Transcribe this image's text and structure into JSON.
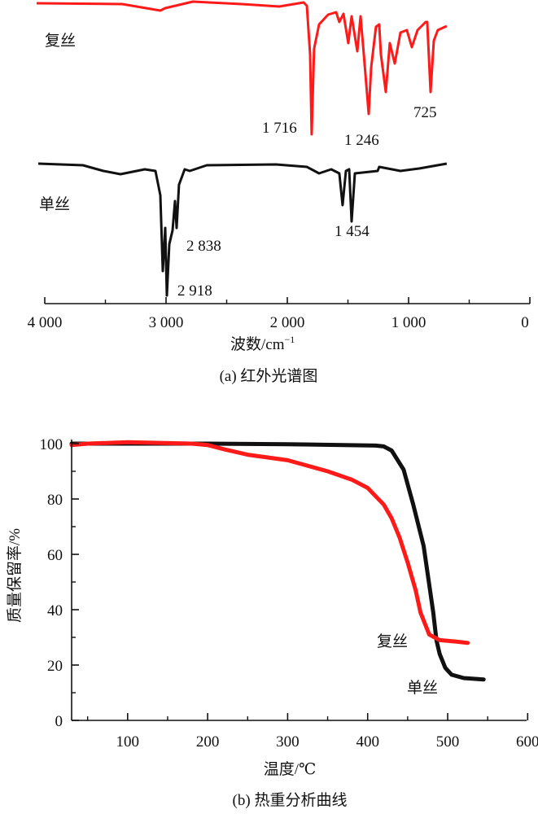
{
  "colors": {
    "composite": "#ff1a1a",
    "mono": "#111111",
    "axis": "#111111"
  },
  "chart_data": [
    {
      "type": "line",
      "title": "(a) 红外光谱图",
      "xlabel": "波数/cm",
      "xlabel_sup": "−1",
      "ylabel": "",
      "xlim": [
        4000,
        0
      ],
      "ylim": [
        -86,
        100
      ],
      "x_ticks": [
        4000,
        3000,
        2000,
        1000,
        0
      ],
      "x_tick_labels": [
        "4 000",
        "3 000",
        "2 000",
        "1 000",
        "0"
      ],
      "x_minor_ticks": [
        3500,
        2500,
        1500,
        500
      ],
      "grid": false,
      "series": [
        {
          "name": "复丝",
          "color": "#ff1a1a",
          "x": [
            4067,
            3362,
            3047,
            3007,
            2779,
            2376,
            2067,
            1866,
            1839,
            1812,
            1799,
            1779,
            1738,
            1664,
            1597,
            1571,
            1537,
            1497,
            1470,
            1423,
            1396,
            1369,
            1329,
            1309,
            1269,
            1242,
            1228,
            1188,
            1155,
            1114,
            1067,
            1014,
            973,
            926,
            859,
            846,
            819,
            792,
            759,
            685
          ],
          "y": [
            98,
            97.5,
            93.5,
            95,
            99,
            97.5,
            96,
            98.5,
            96.5,
            66.5,
            17.5,
            70,
            85,
            91,
            92.5,
            86.5,
            91.5,
            73.5,
            90,
            68.5,
            90,
            66.5,
            30,
            58.5,
            83.5,
            85,
            66.5,
            43.5,
            73.5,
            61,
            80,
            81.5,
            71,
            81.5,
            86.5,
            86.5,
            43.5,
            75,
            81.5,
            84
          ]
        },
        {
          "name": "单丝",
          "color": "#111111",
          "x": [
            4054,
            3685,
            3517,
            3376,
            3175,
            3087,
            3047,
            3027,
            3007,
            2993,
            2973,
            2946,
            2926,
            2913,
            2893,
            2846,
            2805,
            2664,
            2094,
            1839,
            1738,
            1638,
            1571,
            1544,
            1517,
            1490,
            1470,
            1443,
            1255,
            1242,
            1067,
            913,
            685
          ],
          "y": [
            -0.5,
            -1.5,
            -5,
            -7,
            -4,
            -5,
            -20,
            -66.5,
            -40,
            -81.5,
            -50,
            -41.5,
            -23.5,
            -40,
            -13.5,
            -4,
            -5,
            -1.5,
            -1,
            -2.5,
            -6.5,
            -4,
            -6.5,
            -26,
            -5,
            -4,
            -36,
            -6.5,
            -5,
            -2.5,
            -5,
            -3.5,
            -0.5
          ]
        }
      ],
      "annotations": [
        "1 716",
        "1 246",
        "725",
        "2 838",
        "2 918",
        "1 454"
      ],
      "series_labels": [
        "复丝",
        "单丝"
      ]
    },
    {
      "type": "line",
      "title": "(b) 热重分析曲线",
      "xlabel": "温度/℃",
      "ylabel": "质量保留率/%",
      "xlim": [
        30,
        600
      ],
      "ylim": [
        0,
        100
      ],
      "x_ticks": [
        100,
        200,
        300,
        400,
        500,
        600
      ],
      "x_tick_labels": [
        "100",
        "200",
        "300",
        "400",
        "500",
        "600"
      ],
      "x_minor_ticks": [
        50,
        150,
        250,
        350,
        450,
        550
      ],
      "y_ticks": [
        0,
        20,
        40,
        60,
        80,
        100
      ],
      "y_tick_labels": [
        "0",
        "20",
        "40",
        "60",
        "80",
        "100"
      ],
      "y_minor_ticks": [
        10,
        30,
        50,
        70,
        90
      ],
      "grid": false,
      "series": [
        {
          "name": "单丝",
          "color": "#111111",
          "x": [
            30,
            100,
            200,
            300,
            370,
            410,
            420,
            430,
            445,
            457,
            470,
            482,
            486,
            490,
            497,
            505,
            520,
            545
          ],
          "y": [
            100,
            100,
            100,
            99.8,
            99.5,
            99.3,
            99,
            97.5,
            90.6,
            78,
            63,
            39,
            29,
            24,
            19,
            16.5,
            15.3,
            14.8
          ]
        },
        {
          "name": "复丝",
          "color": "#ff1a1a",
          "x": [
            30,
            50,
            100,
            180,
            200,
            220,
            250,
            300,
            350,
            380,
            400,
            420,
            430,
            440,
            450,
            460,
            466,
            477,
            490,
            510,
            525
          ],
          "y": [
            99.5,
            100,
            100.5,
            100,
            99.5,
            98,
            96,
            94,
            90,
            87,
            84,
            78,
            73,
            66,
            57,
            47,
            39,
            31,
            29,
            28.5,
            28
          ]
        }
      ],
      "series_labels": [
        "复丝",
        "单丝"
      ]
    }
  ]
}
